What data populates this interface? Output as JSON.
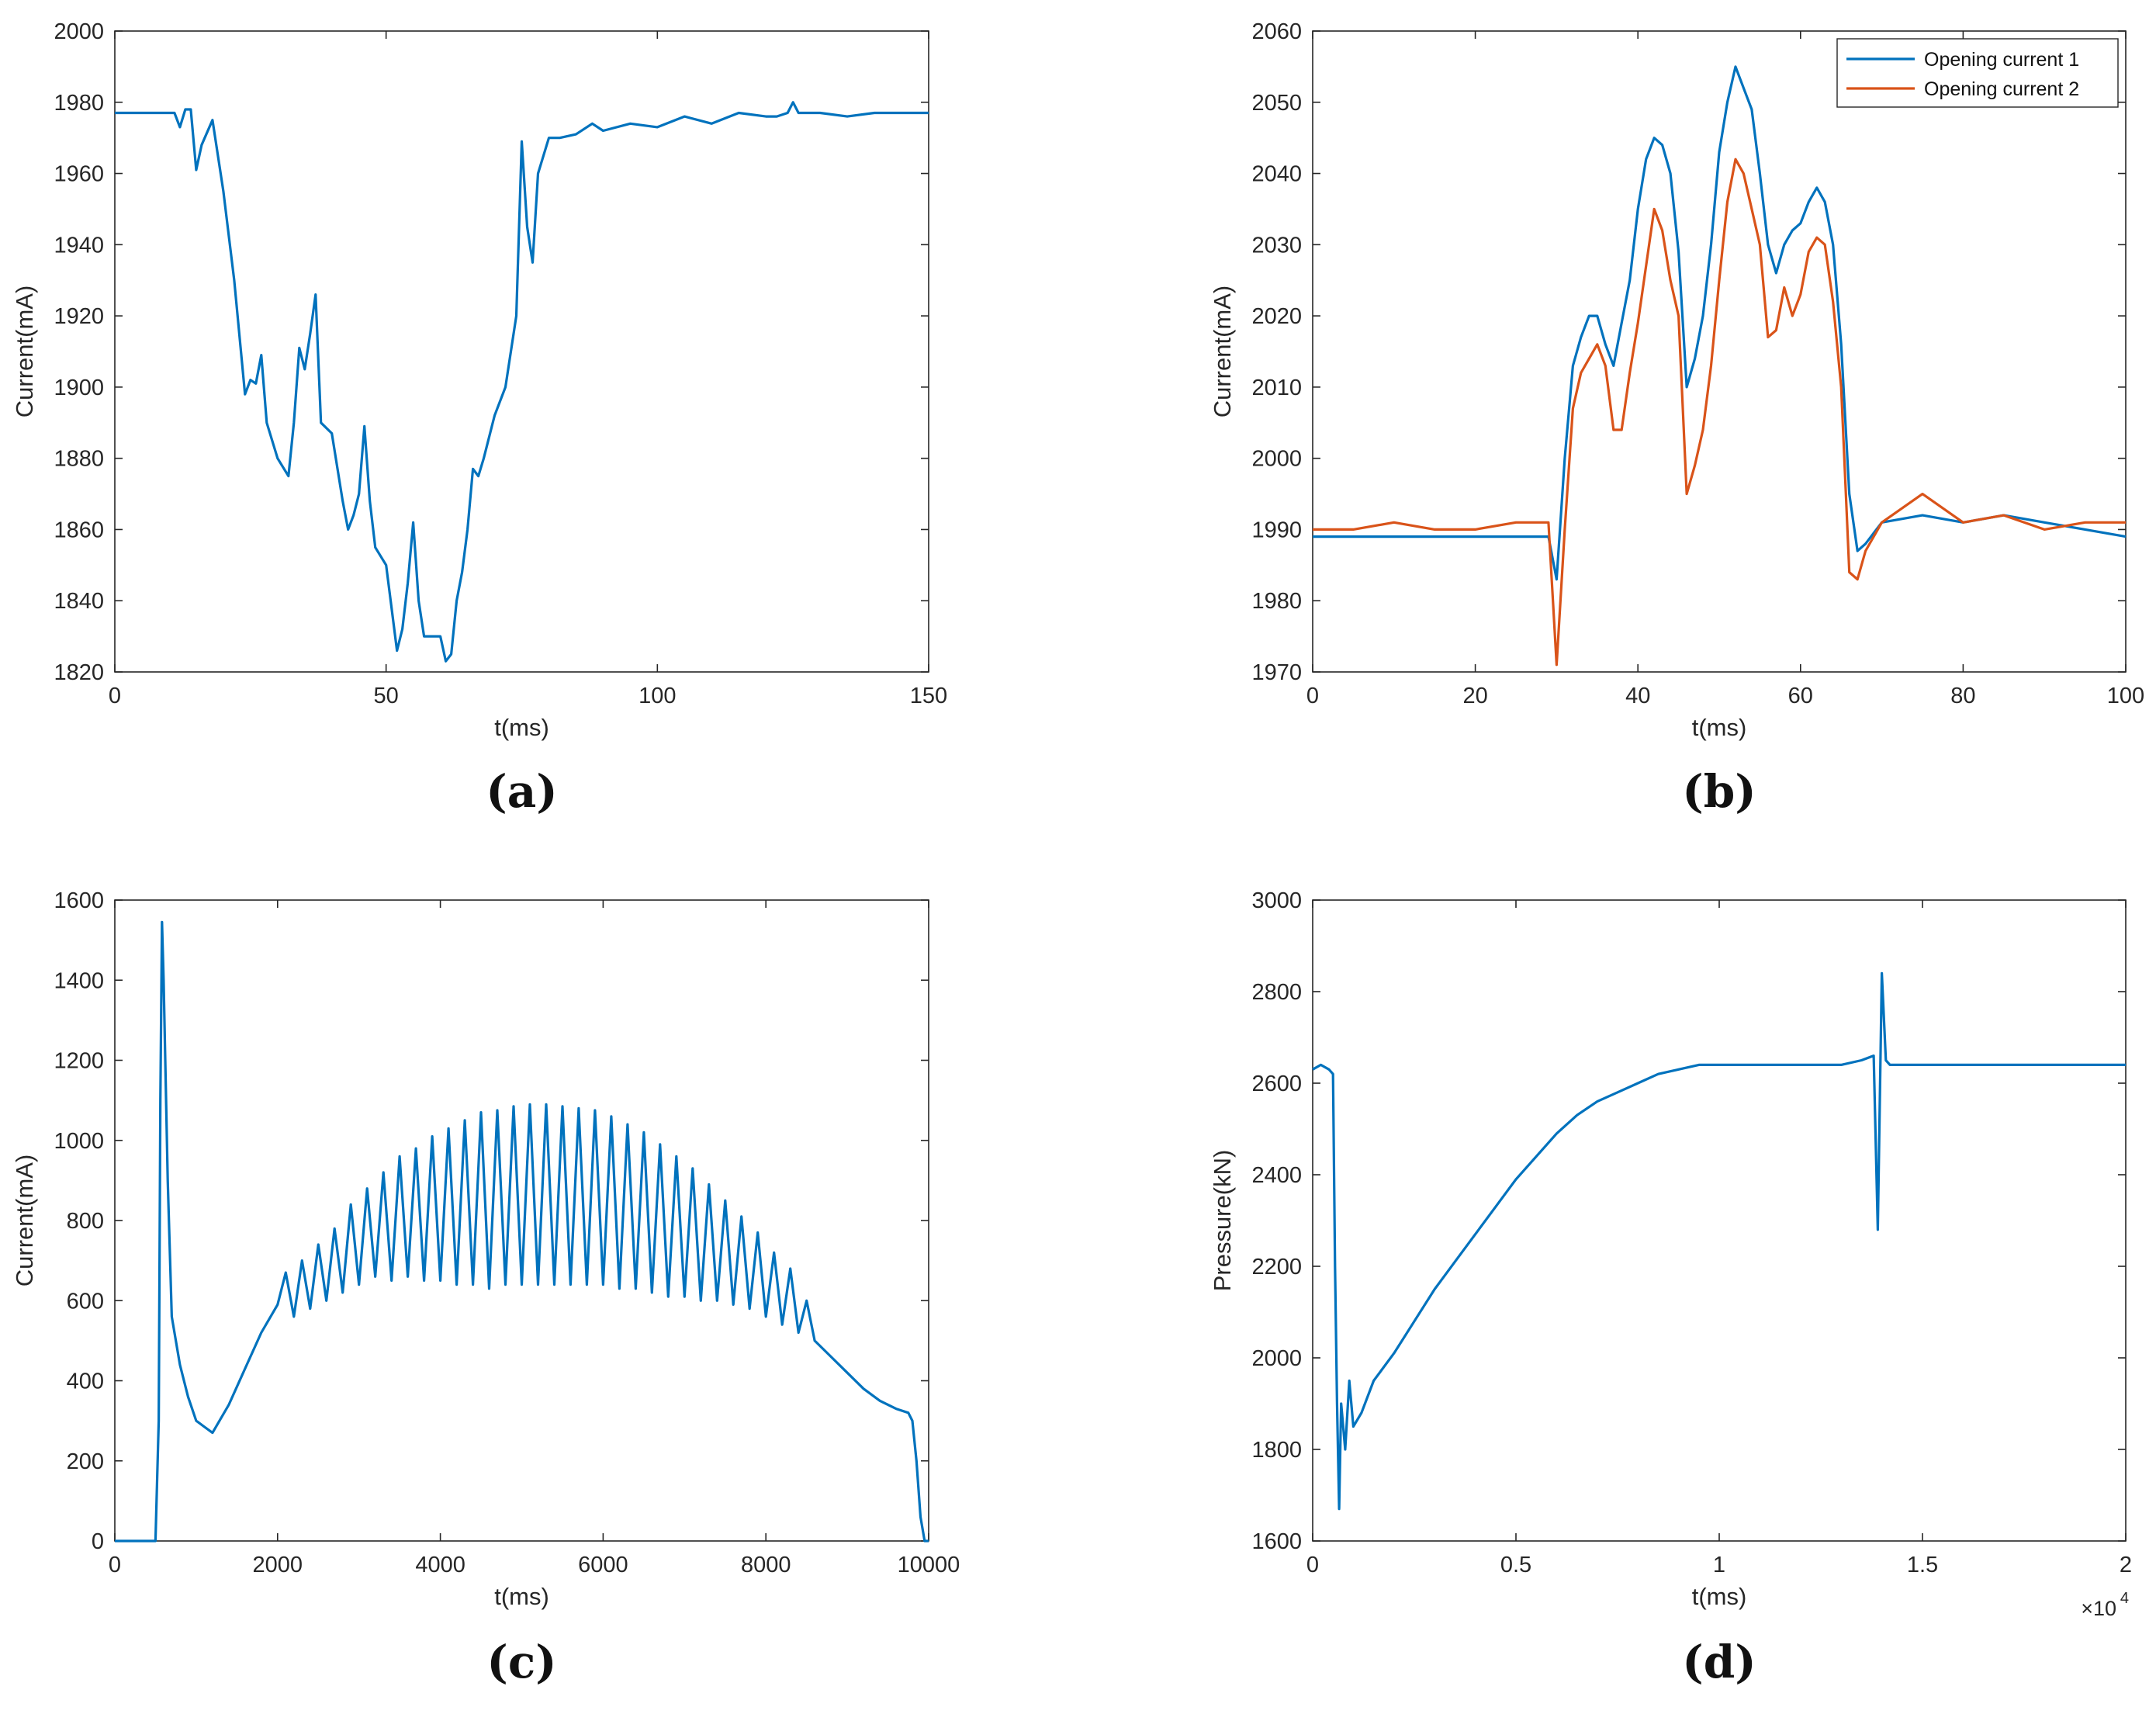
{
  "colors": {
    "series1": "#0072BD",
    "series2": "#D95319",
    "axis": "#262626",
    "grid": "#000000"
  },
  "chart_data": [
    {
      "id": "a",
      "type": "line",
      "panel_label": "(a)",
      "xlabel": "t(ms)",
      "ylabel": "Current(mA)",
      "xlim": [
        0,
        150
      ],
      "ylim": [
        1820,
        2000
      ],
      "xticks": [
        0,
        50,
        100,
        150
      ],
      "yticks": [
        1820,
        1840,
        1860,
        1880,
        1900,
        1920,
        1940,
        1960,
        1980,
        2000
      ],
      "series": [
        {
          "name": "Current",
          "color": "#0072BD",
          "x": [
            0,
            10,
            11,
            12,
            13,
            14,
            15,
            16,
            18,
            20,
            22,
            24,
            25,
            26,
            27,
            28,
            30,
            32,
            33,
            34,
            35,
            36,
            37,
            38,
            40,
            42,
            43,
            44,
            45,
            46,
            47,
            48,
            50,
            52,
            53,
            54,
            55,
            56,
            57,
            58,
            60,
            61,
            62,
            63,
            64,
            65,
            66,
            67,
            68,
            70,
            72,
            74,
            75,
            76,
            77,
            78,
            80,
            82,
            85,
            88,
            90,
            95,
            100,
            105,
            110,
            115,
            120,
            122,
            124,
            125,
            126,
            130,
            135,
            140,
            145,
            150
          ],
          "y": [
            1977,
            1977,
            1977,
            1973,
            1978,
            1978,
            1961,
            1968,
            1975,
            1955,
            1930,
            1898,
            1902,
            1901,
            1909,
            1890,
            1880,
            1875,
            1890,
            1911,
            1905,
            1915,
            1926,
            1890,
            1887,
            1868,
            1860,
            1864,
            1870,
            1889,
            1868,
            1855,
            1850,
            1826,
            1832,
            1845,
            1862,
            1840,
            1830,
            1830,
            1830,
            1823,
            1825,
            1840,
            1848,
            1860,
            1877,
            1875,
            1880,
            1892,
            1900,
            1920,
            1969,
            1945,
            1935,
            1960,
            1970,
            1970,
            1971,
            1974,
            1972,
            1974,
            1973,
            1976,
            1974,
            1977,
            1976,
            1976,
            1977,
            1980,
            1977,
            1977,
            1976,
            1977,
            1977,
            1977
          ]
        }
      ]
    },
    {
      "id": "b",
      "type": "line",
      "panel_label": "(b)",
      "xlabel": "t(ms)",
      "ylabel": "Current(mA)",
      "xlim": [
        0,
        100
      ],
      "ylim": [
        1970,
        2060
      ],
      "xticks": [
        0,
        20,
        40,
        60,
        80,
        100
      ],
      "yticks": [
        1970,
        1980,
        1990,
        2000,
        2010,
        2020,
        2030,
        2040,
        2050,
        2060
      ],
      "legend": {
        "position": "top-right",
        "entries": [
          "Opening current 1",
          "Opening current 2"
        ]
      },
      "series": [
        {
          "name": "Opening current 1",
          "color": "#0072BD",
          "x": [
            0,
            5,
            10,
            15,
            20,
            25,
            29,
            30,
            31,
            32,
            33,
            34,
            35,
            36,
            37,
            38,
            39,
            40,
            41,
            42,
            43,
            44,
            45,
            46,
            47,
            48,
            49,
            50,
            51,
            52,
            53,
            54,
            55,
            56,
            57,
            58,
            59,
            60,
            61,
            62,
            63,
            64,
            65,
            66,
            67,
            68,
            70,
            75,
            80,
            85,
            90,
            95,
            100
          ],
          "y": [
            1989,
            1989,
            1989,
            1989,
            1989,
            1989,
            1989,
            1983,
            2000,
            2013,
            2017,
            2020,
            2020,
            2016,
            2013,
            2019,
            2025,
            2035,
            2042,
            2045,
            2044,
            2040,
            2029,
            2010,
            2014,
            2020,
            2030,
            2043,
            2050,
            2055,
            2052,
            2049,
            2040,
            2030,
            2026,
            2030,
            2032,
            2033,
            2036,
            2038,
            2036,
            2030,
            2016,
            1995,
            1987,
            1988,
            1991,
            1992,
            1991,
            1992,
            1991,
            1990,
            1989
          ]
        },
        {
          "name": "Opening current 2",
          "color": "#D95319",
          "x": [
            0,
            5,
            10,
            15,
            20,
            25,
            29,
            30,
            31,
            32,
            33,
            34,
            35,
            36,
            37,
            38,
            39,
            40,
            41,
            42,
            43,
            44,
            45,
            46,
            47,
            48,
            49,
            50,
            51,
            52,
            53,
            54,
            55,
            56,
            57,
            58,
            59,
            60,
            61,
            62,
            63,
            64,
            65,
            66,
            67,
            68,
            70,
            75,
            80,
            85,
            90,
            95,
            100
          ],
          "y": [
            1990,
            1990,
            1991,
            1990,
            1990,
            1991,
            1991,
            1971,
            1990,
            2007,
            2012,
            2014,
            2016,
            2013,
            2004,
            2004,
            2012,
            2019,
            2027,
            2035,
            2032,
            2025,
            2020,
            1995,
            1999,
            2004,
            2013,
            2025,
            2036,
            2042,
            2040,
            2035,
            2030,
            2017,
            2018,
            2024,
            2020,
            2023,
            2029,
            2031,
            2030,
            2022,
            2010,
            1984,
            1983,
            1987,
            1991,
            1995,
            1991,
            1992,
            1990,
            1991,
            1991
          ]
        }
      ]
    },
    {
      "id": "c",
      "type": "line",
      "panel_label": "(c)",
      "xlabel": "t(ms)",
      "ylabel": "Current(mA)",
      "xlim": [
        0,
        10000
      ],
      "ylim": [
        0,
        1600
      ],
      "xticks": [
        0,
        2000,
        4000,
        6000,
        8000,
        10000
      ],
      "yticks": [
        0,
        200,
        400,
        600,
        800,
        1000,
        1200,
        1400,
        1600
      ],
      "series": [
        {
          "name": "Current",
          "color": "#0072BD",
          "x": [
            0,
            500,
            540,
            560,
            580,
            600,
            650,
            700,
            800,
            900,
            1000,
            1100,
            1200,
            1400,
            1600,
            1800,
            2000,
            2100,
            2200,
            2300,
            2400,
            2500,
            2600,
            2700,
            2800,
            2900,
            3000,
            3100,
            3200,
            3300,
            3400,
            3500,
            3600,
            3700,
            3800,
            3900,
            4000,
            4100,
            4200,
            4300,
            4400,
            4500,
            4600,
            4700,
            4800,
            4900,
            5000,
            5100,
            5200,
            5300,
            5400,
            5500,
            5600,
            5700,
            5800,
            5900,
            6000,
            6100,
            6200,
            6300,
            6400,
            6500,
            6600,
            6700,
            6800,
            6900,
            7000,
            7100,
            7200,
            7300,
            7400,
            7500,
            7600,
            7700,
            7800,
            7900,
            8000,
            8100,
            8200,
            8300,
            8400,
            8500,
            8600,
            8800,
            9000,
            9200,
            9400,
            9600,
            9750,
            9800,
            9850,
            9900,
            9950,
            10000
          ],
          "y": [
            0,
            0,
            300,
            1100,
            1545,
            1400,
            900,
            560,
            440,
            360,
            300,
            285,
            270,
            340,
            430,
            520,
            590,
            670,
            560,
            700,
            580,
            740,
            600,
            780,
            620,
            840,
            640,
            880,
            660,
            920,
            650,
            960,
            660,
            980,
            650,
            1010,
            650,
            1030,
            640,
            1050,
            640,
            1070,
            630,
            1075,
            640,
            1085,
            640,
            1090,
            640,
            1090,
            640,
            1085,
            640,
            1080,
            640,
            1075,
            640,
            1060,
            630,
            1040,
            630,
            1020,
            620,
            990,
            610,
            960,
            610,
            930,
            600,
            890,
            600,
            850,
            590,
            810,
            580,
            770,
            560,
            720,
            540,
            680,
            520,
            600,
            500,
            460,
            420,
            380,
            350,
            330,
            320,
            300,
            200,
            60,
            0,
            0
          ]
        }
      ]
    },
    {
      "id": "d",
      "type": "line",
      "panel_label": "(d)",
      "xlabel": "t(ms)",
      "ylabel": "Pressure(kN)",
      "xlim": [
        0,
        2
      ],
      "x_multiplier": "×10",
      "x_exponent": "4",
      "ylim": [
        1600,
        3000
      ],
      "xticks": [
        0,
        0.5,
        1,
        1.5,
        2
      ],
      "yticks": [
        1600,
        1800,
        2000,
        2200,
        2400,
        2600,
        2800,
        3000
      ],
      "series": [
        {
          "name": "Pressure",
          "color": "#0072BD",
          "x": [
            0,
            0.02,
            0.04,
            0.05,
            0.055,
            0.06,
            0.065,
            0.07,
            0.08,
            0.09,
            0.1,
            0.12,
            0.15,
            0.2,
            0.25,
            0.3,
            0.35,
            0.4,
            0.45,
            0.5,
            0.55,
            0.6,
            0.65,
            0.7,
            0.75,
            0.8,
            0.85,
            0.9,
            0.95,
            1,
            1.1,
            1.2,
            1.3,
            1.35,
            1.38,
            1.39,
            1.4,
            1.41,
            1.42,
            1.45,
            1.5,
            1.6,
            1.7,
            1.8,
            1.9,
            2
          ],
          "y": [
            2630,
            2640,
            2630,
            2620,
            2200,
            1900,
            1670,
            1900,
            1800,
            1950,
            1850,
            1880,
            1950,
            2010,
            2080,
            2150,
            2210,
            2270,
            2330,
            2390,
            2440,
            2490,
            2530,
            2560,
            2580,
            2600,
            2620,
            2630,
            2640,
            2640,
            2640,
            2640,
            2640,
            2650,
            2660,
            2280,
            2840,
            2650,
            2640,
            2640,
            2640,
            2640,
            2640,
            2640,
            2640,
            2640
          ]
        }
      ]
    }
  ]
}
